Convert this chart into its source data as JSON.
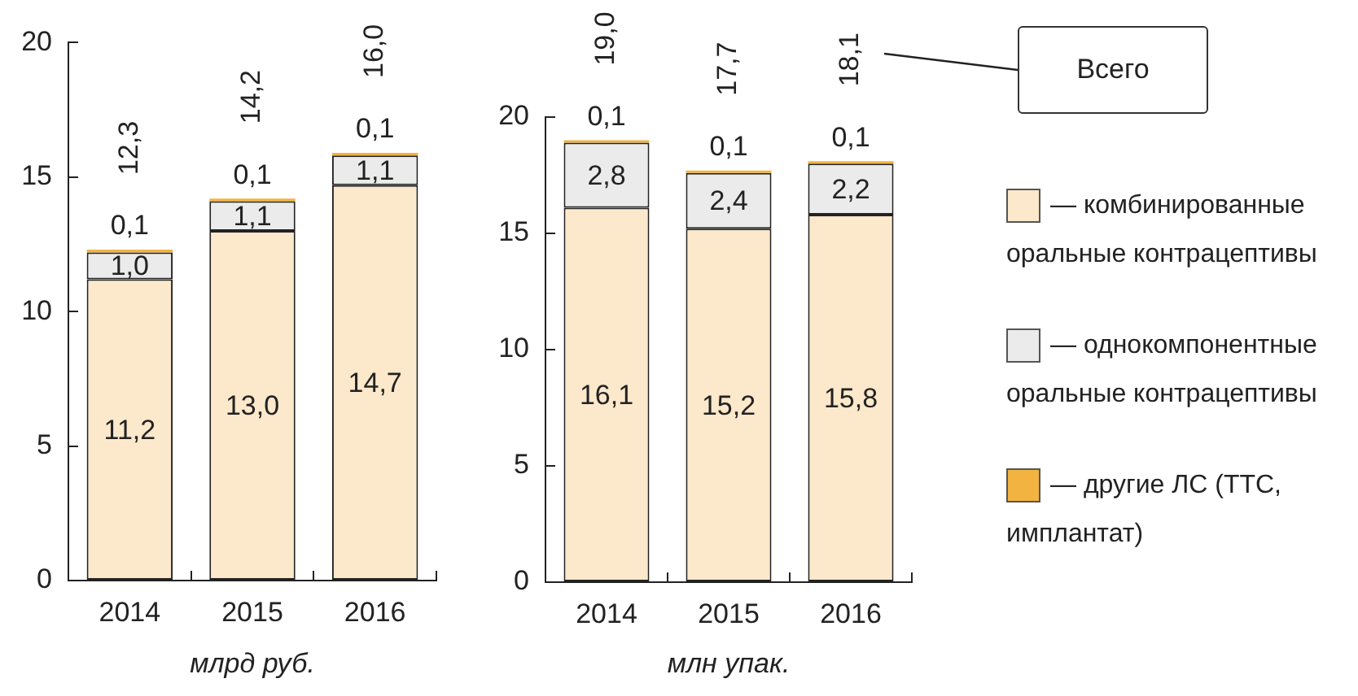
{
  "chart_data": [
    {
      "type": "bar",
      "categories": [
        "2014",
        "2015",
        "2016"
      ],
      "stacked": true,
      "series": [
        {
          "color": "#fce8cb",
          "values": [
            11.2,
            13.0,
            14.7
          ],
          "value_labels": [
            "11,2",
            "13,0",
            "14,7"
          ]
        },
        {
          "color": "#ebebeb",
          "values": [
            1.0,
            1.1,
            1.1
          ],
          "value_labels": [
            "1,0",
            "1,1",
            "1,1"
          ]
        },
        {
          "color": "#f2b340",
          "values": [
            0.1,
            0.1,
            0.1
          ],
          "value_labels": [
            "0,1",
            "0,1",
            "0,1"
          ]
        }
      ],
      "totals": [
        "12,3",
        "14,2",
        "16,0"
      ],
      "xlabel": "млрд руб.",
      "ylim": [
        0,
        20
      ],
      "yticks": [
        0,
        5,
        10,
        15,
        20
      ]
    },
    {
      "type": "bar",
      "categories": [
        "2014",
        "2015",
        "2016"
      ],
      "stacked": true,
      "series": [
        {
          "name": "— комбинированные оральные контрацептивы",
          "color": "#fce8cb",
          "values": [
            16.1,
            15.2,
            15.8
          ],
          "value_labels": [
            "16,1",
            "15,2",
            "15,8"
          ]
        },
        {
          "name": "— однокомпонентные оральные контрацептивы",
          "color": "#ebebeb",
          "values": [
            2.8,
            2.4,
            2.2
          ],
          "value_labels": [
            "2,8",
            "2,4",
            "2,2"
          ]
        },
        {
          "name": "— другие ЛС (ТТС, имплантат)",
          "color": "#f2b340",
          "values": [
            0.1,
            0.1,
            0.1
          ],
          "value_labels": [
            "0,1",
            "0,1",
            "0,1"
          ]
        }
      ],
      "totals": [
        "19,0",
        "17,7",
        "18,1"
      ],
      "xlabel": "млн упак.",
      "ylim": [
        0,
        20
      ],
      "yticks": [
        0,
        5,
        10,
        15,
        20
      ],
      "legend": "right",
      "annotations": [
        "Всего"
      ]
    }
  ]
}
